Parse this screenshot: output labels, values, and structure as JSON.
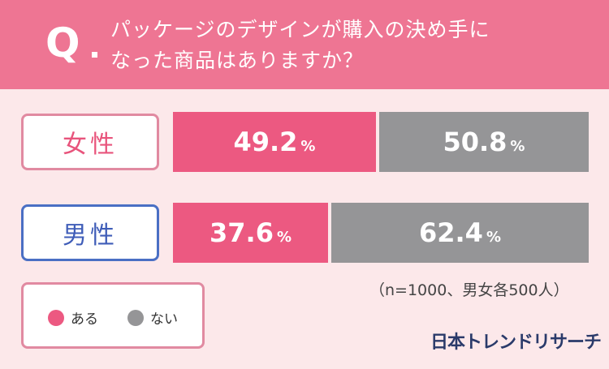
{
  "header": {
    "q_letter": "Q",
    "question_line1": "パッケージのデザインが購入の決め手に",
    "question_line2": "なった商品はありますか？",
    "bg_color": "#ee7593"
  },
  "chart_data": {
    "type": "bar",
    "orientation": "horizontal-stacked-100",
    "categories": [
      "女性",
      "男性"
    ],
    "series": [
      {
        "name": "ある",
        "values": [
          49.2,
          37.6
        ],
        "labels": [
          "49.2",
          "37.6"
        ],
        "color": "#ec5981"
      },
      {
        "name": "ない",
        "values": [
          50.8,
          62.4
        ],
        "labels": [
          "50.8",
          "62.4"
        ],
        "color": "#959597"
      }
    ],
    "unit": "%",
    "legend_position": "bottom-left"
  },
  "note": "（n=1000、男女各500人）",
  "brand": "日本トレンドリサーチ"
}
